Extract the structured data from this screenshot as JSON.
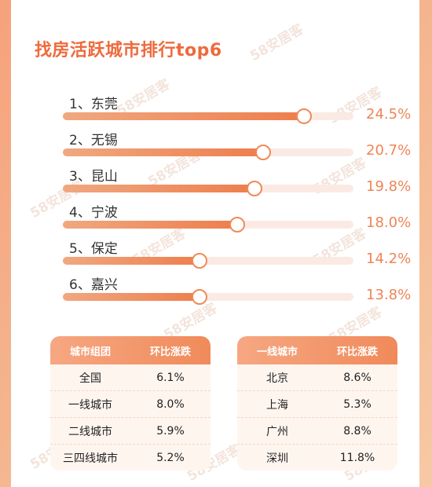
{
  "chart_data": [
    {
      "type": "bar",
      "title": "找房活跃城市排行top6",
      "categories": [
        "东莞",
        "无锡",
        "昆山",
        "宁波",
        "保定",
        "嘉兴"
      ],
      "rank_labels": [
        "1、东莞",
        "2、无锡",
        "3、昆山",
        "4、宁波",
        "5、保定",
        "6、嘉兴"
      ],
      "values": [
        24.5,
        20.7,
        19.8,
        18.0,
        14.2,
        13.8
      ],
      "value_labels": [
        "24.5%",
        "20.7%",
        "19.8%",
        "18.0%",
        "14.2%",
        "13.8%"
      ],
      "fill_fractions": [
        0.83,
        0.69,
        0.66,
        0.6,
        0.47,
        0.47
      ],
      "orientation": "horizontal"
    },
    {
      "type": "table",
      "headers": [
        "城市组团",
        "环比涨跌"
      ],
      "rows": [
        [
          "全国",
          "6.1%"
        ],
        [
          "一线城市",
          "8.0%"
        ],
        [
          "二线城市",
          "5.9%"
        ],
        [
          "三四线城市",
          "5.2%"
        ]
      ]
    },
    {
      "type": "table",
      "headers": [
        "一线城市",
        "环比涨跌"
      ],
      "rows": [
        [
          "北京",
          "8.6%"
        ],
        [
          "上海",
          "5.3%"
        ],
        [
          "广州",
          "8.8%"
        ],
        [
          "深圳",
          "11.8%"
        ]
      ]
    }
  ],
  "watermark": "58安居客",
  "colors": {
    "accent": "#ee6a3c",
    "bar": "#ee7e4d",
    "track": "#fbeae4",
    "header": "#f08a5a"
  }
}
